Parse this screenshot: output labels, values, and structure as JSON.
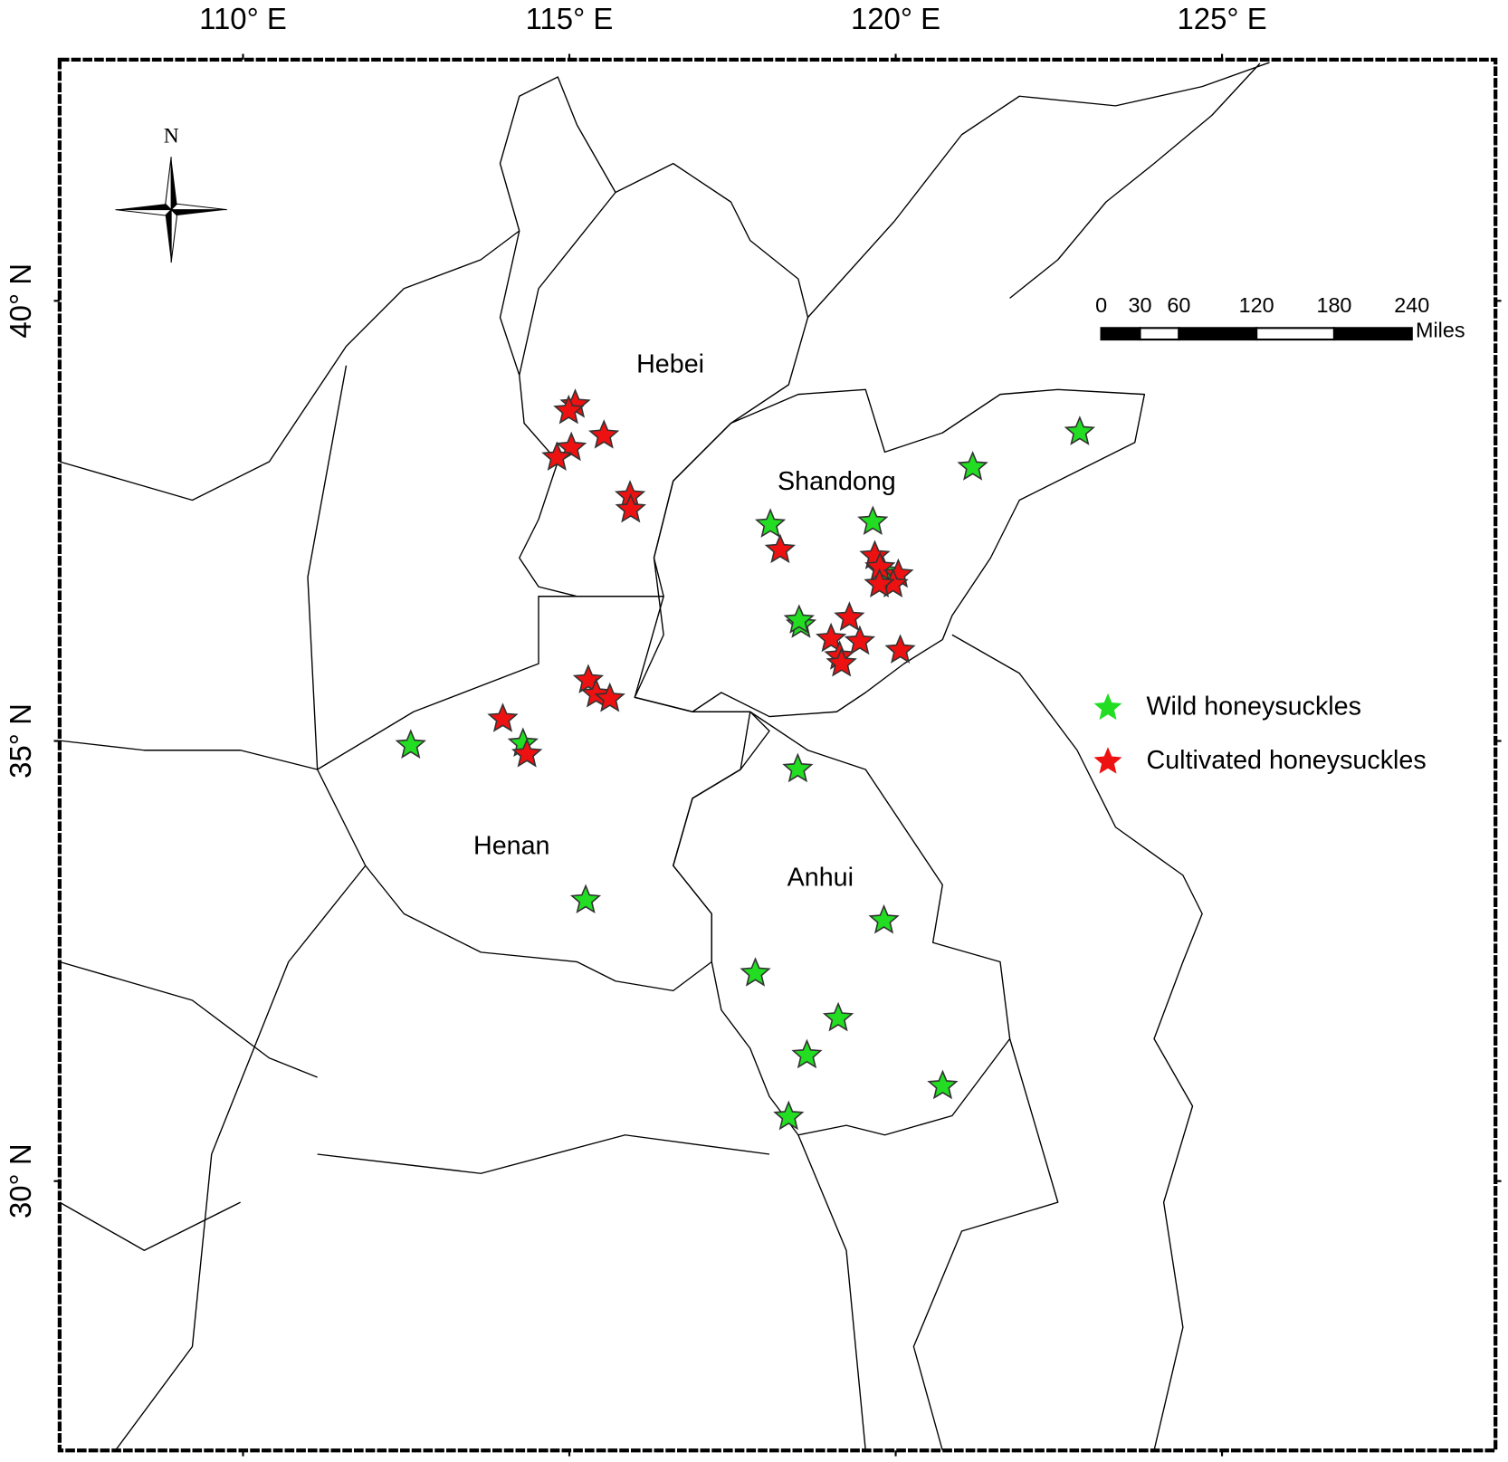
{
  "chart_data": {
    "type": "map",
    "xlim": [
      107.19,
      129.19
    ],
    "ylim": [
      26.94,
      42.74
    ],
    "xticks": [
      {
        "value": 110,
        "label": "110° E"
      },
      {
        "value": 115,
        "label": "115° E"
      },
      {
        "value": 120,
        "label": "120° E"
      },
      {
        "value": 125,
        "label": "125° E"
      }
    ],
    "yticks": [
      {
        "value": 40,
        "label": "40° N"
      },
      {
        "value": 35,
        "label": "35° N"
      },
      {
        "value": 30,
        "label": "30° N"
      }
    ],
    "regions": [
      "Hebei",
      "Shandong",
      "Henan",
      "Anhui"
    ],
    "north_label": "N",
    "scale_bar": {
      "ticks": [
        0,
        30,
        60,
        120,
        180,
        240
      ],
      "unit": "Miles"
    },
    "series": [
      {
        "name": "Wild honeysuckles",
        "color": "#22dd22",
        "x": [
          122.82,
          121.18,
          118.08,
          119.65,
          118.55,
          118.52,
          119.81,
          112.57,
          114.29,
          118.5,
          115.25,
          119.82,
          117.85,
          119.12,
          118.64,
          120.72,
          118.36
        ],
        "y": [
          38.51,
          38.11,
          37.46,
          37.49,
          36.32,
          36.37,
          36.92,
          34.95,
          34.97,
          34.68,
          33.19,
          32.96,
          32.36,
          31.85,
          31.43,
          31.08,
          30.73
        ]
      },
      {
        "name": "Cultivated honeysuckles",
        "color": "#ee1111",
        "x": [
          115.09,
          114.99,
          115.53,
          115.03,
          114.81,
          115.93,
          115.94,
          118.23,
          119.68,
          119.76,
          120.04,
          119.96,
          119.75,
          119.29,
          119.01,
          119.45,
          119.14,
          119.17,
          120.07,
          115.29,
          115.41,
          115.62,
          113.98,
          114.35
        ],
        "y": [
          38.82,
          38.75,
          38.47,
          38.33,
          38.22,
          37.78,
          37.63,
          37.17,
          37.1,
          36.97,
          36.89,
          36.78,
          36.78,
          36.4,
          36.16,
          36.13,
          35.96,
          35.88,
          36.03,
          35.69,
          35.53,
          35.48,
          35.25,
          34.85
        ]
      }
    ]
  }
}
